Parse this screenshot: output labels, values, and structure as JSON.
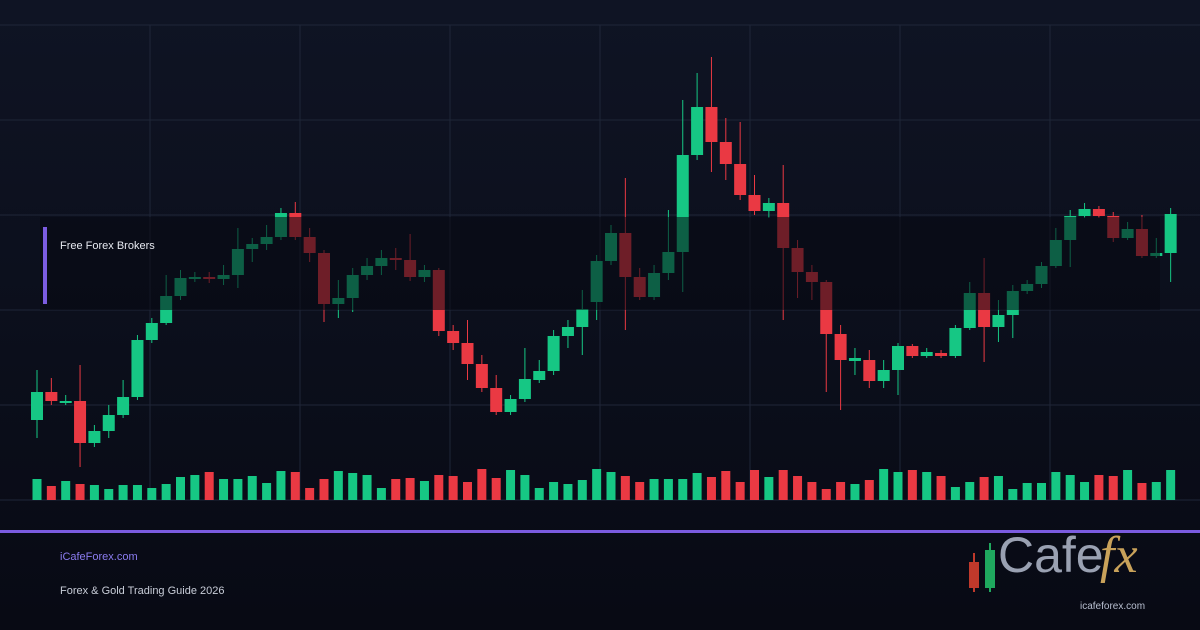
{
  "banner": {
    "label": "Free Forex Brokers"
  },
  "footer": {
    "site": "iCafeForex.com",
    "subtitle": "Forex & Gold Trading Guide 2026"
  },
  "logo": {
    "word": "Cafe",
    "accent": "fx",
    "url": "icafeforex.com"
  },
  "chart_data": {
    "type": "candlestick",
    "open": [
      80,
      108,
      97,
      99,
      57,
      69,
      85,
      103,
      160,
      177,
      204,
      221,
      223,
      221,
      225,
      251,
      256,
      263,
      287,
      263,
      247,
      196,
      202,
      225,
      234,
      242,
      240,
      223,
      230,
      169,
      157,
      136,
      112,
      88,
      101,
      120,
      129,
      164,
      173,
      198,
      239,
      267,
      223,
      203,
      227,
      248,
      345,
      393,
      358,
      336,
      305,
      289,
      297,
      252,
      228,
      218,
      166,
      139,
      140,
      119,
      130,
      154,
      144,
      147,
      144,
      172,
      207,
      173,
      185,
      209,
      216,
      234,
      260,
      284,
      291,
      284,
      262,
      271,
      244,
      247
    ],
    "high": [
      130,
      122,
      105,
      135,
      75,
      95,
      120,
      165,
      182,
      225,
      230,
      228,
      228,
      235,
      272,
      262,
      275,
      292,
      298,
      272,
      250,
      220,
      232,
      242,
      250,
      252,
      266,
      235,
      232,
      175,
      180,
      145,
      125,
      105,
      152,
      140,
      170,
      180,
      210,
      245,
      275,
      322,
      232,
      235,
      290,
      400,
      427,
      443,
      382,
      378,
      325,
      302,
      335,
      260,
      235,
      220,
      175,
      152,
      150,
      140,
      157,
      156,
      152,
      150,
      175,
      218,
      242,
      200,
      215,
      220,
      238,
      272,
      290,
      297,
      294,
      288,
      278,
      285,
      262,
      292
    ],
    "low": [
      62,
      95,
      95,
      33,
      53,
      62,
      82,
      100,
      157,
      175,
      200,
      218,
      217,
      215,
      212,
      238,
      250,
      260,
      260,
      238,
      178,
      182,
      188,
      220,
      225,
      230,
      219,
      218,
      164,
      150,
      120,
      108,
      85,
      85,
      98,
      117,
      125,
      152,
      145,
      180,
      235,
      170,
      200,
      200,
      220,
      208,
      340,
      328,
      320,
      300,
      285,
      282,
      180,
      202,
      200,
      108,
      90,
      125,
      112,
      112,
      105,
      142,
      142,
      142,
      142,
      170,
      138,
      158,
      162,
      206,
      212,
      232,
      233,
      282,
      282,
      258,
      260,
      242,
      242,
      218
    ],
    "close": [
      108,
      99,
      99,
      57,
      69,
      85,
      103,
      160,
      177,
      204,
      222,
      223,
      221,
      225,
      251,
      256,
      263,
      287,
      263,
      247,
      196,
      202,
      225,
      234,
      242,
      240,
      223,
      230,
      169,
      157,
      136,
      112,
      88,
      101,
      121,
      129,
      164,
      173,
      191,
      239,
      267,
      223,
      203,
      227,
      248,
      345,
      393,
      358,
      336,
      305,
      289,
      297,
      252,
      228,
      218,
      166,
      140,
      142,
      119,
      130,
      154,
      144,
      148,
      144,
      172,
      207,
      173,
      185,
      209,
      216,
      234,
      260,
      284,
      291,
      284,
      262,
      271,
      244,
      247,
      286
    ],
    "volume": [
      21,
      14,
      19,
      16,
      15,
      11,
      15,
      15,
      12,
      16,
      23,
      25,
      28,
      21,
      21,
      24,
      17,
      29,
      28,
      12,
      21,
      29,
      27,
      25,
      12,
      21,
      22,
      19,
      25,
      24,
      18,
      31,
      22,
      30,
      25,
      12,
      18,
      16,
      20,
      31,
      28,
      24,
      18,
      21,
      21,
      21,
      27,
      23,
      29,
      18,
      30,
      23,
      30,
      24,
      18,
      11,
      18,
      16,
      20,
      31,
      28,
      30,
      28,
      24,
      13,
      18,
      23,
      24,
      11,
      17,
      17,
      28,
      25,
      18,
      25,
      24,
      30,
      17,
      18,
      30
    ],
    "ylim": [
      0,
      475
    ],
    "up_color": "#16c784",
    "down_color": "#ea3943",
    "grid": true
  }
}
